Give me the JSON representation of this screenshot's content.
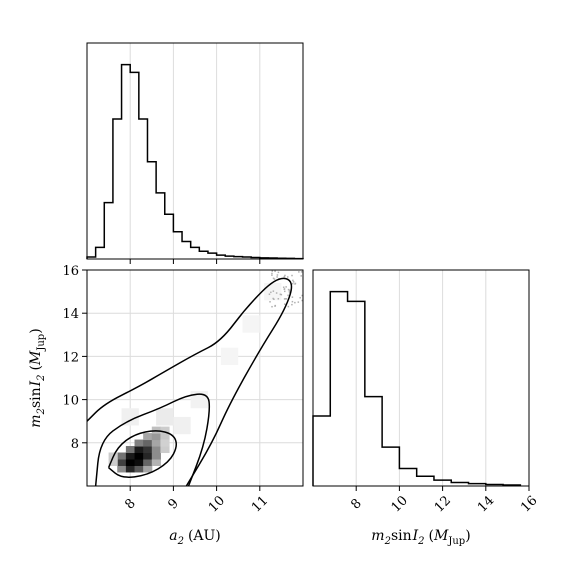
{
  "chart_data": [
    {
      "type": "histogram",
      "panel": "top",
      "x": [
        7.1,
        7.3,
        7.5,
        7.7,
        7.9,
        8.1,
        8.3,
        8.5,
        8.7,
        8.9,
        9.1,
        9.3,
        9.5,
        9.7,
        9.9,
        10.1,
        10.3,
        10.5,
        10.7,
        10.9,
        11.1,
        11.3,
        11.5,
        11.7,
        11.9
      ],
      "counts": [
        0.01,
        0.06,
        0.29,
        0.72,
        1.0,
        0.96,
        0.72,
        0.5,
        0.34,
        0.23,
        0.14,
        0.09,
        0.06,
        0.04,
        0.03,
        0.02,
        0.015,
        0.012,
        0.01,
        0.008,
        0.006,
        0.005,
        0.004,
        0.003,
        0.002
      ],
      "xlim": [
        7.0,
        12.0
      ],
      "grid": true
    },
    {
      "type": "heatmap",
      "panel": "bottom-left",
      "xlabel_main": "a",
      "xlabel_sub": "2",
      "xlabel_unit": "(AU)",
      "ylabel_parts": [
        "m",
        "2",
        "sin",
        "I",
        "2",
        "(",
        "M",
        "Jup",
        ")"
      ],
      "xlim": [
        7.0,
        12.0
      ],
      "ylim": [
        6.0,
        16.0
      ],
      "xticks": [
        "8",
        "9",
        "10",
        "11"
      ],
      "xtick_values": [
        8,
        9,
        10,
        11
      ],
      "yticks": [
        "8",
        "10",
        "12",
        "14",
        "16"
      ],
      "ytick_values": [
        8,
        10,
        12,
        14,
        16
      ],
      "cells": [
        {
          "x": 7.8,
          "y": 6.8,
          "d": 0.45
        },
        {
          "x": 8.0,
          "y": 6.8,
          "d": 0.85
        },
        {
          "x": 8.2,
          "y": 6.8,
          "d": 0.65
        },
        {
          "x": 8.4,
          "y": 6.8,
          "d": 0.35
        },
        {
          "x": 7.8,
          "y": 7.1,
          "d": 0.75
        },
        {
          "x": 8.0,
          "y": 7.1,
          "d": 1.0
        },
        {
          "x": 8.2,
          "y": 7.1,
          "d": 0.95
        },
        {
          "x": 8.4,
          "y": 7.1,
          "d": 0.6
        },
        {
          "x": 8.6,
          "y": 7.1,
          "d": 0.3
        },
        {
          "x": 7.8,
          "y": 7.4,
          "d": 0.55
        },
        {
          "x": 8.0,
          "y": 7.4,
          "d": 0.9
        },
        {
          "x": 8.2,
          "y": 7.4,
          "d": 1.0
        },
        {
          "x": 8.4,
          "y": 7.4,
          "d": 0.85
        },
        {
          "x": 8.6,
          "y": 7.4,
          "d": 0.45
        },
        {
          "x": 8.0,
          "y": 7.7,
          "d": 0.55
        },
        {
          "x": 8.2,
          "y": 7.7,
          "d": 0.9
        },
        {
          "x": 8.4,
          "y": 7.7,
          "d": 0.8
        },
        {
          "x": 8.6,
          "y": 7.7,
          "d": 0.45
        },
        {
          "x": 8.2,
          "y": 8.0,
          "d": 0.5
        },
        {
          "x": 8.4,
          "y": 8.0,
          "d": 0.6
        },
        {
          "x": 8.6,
          "y": 8.0,
          "d": 0.35
        },
        {
          "x": 8.4,
          "y": 8.3,
          "d": 0.35
        },
        {
          "x": 8.6,
          "y": 8.3,
          "d": 0.4
        },
        {
          "x": 8.8,
          "y": 8.3,
          "d": 0.22
        },
        {
          "x": 8.6,
          "y": 8.6,
          "d": 0.25
        },
        {
          "x": 8.8,
          "y": 8.6,
          "d": 0.2
        },
        {
          "x": 7.6,
          "y": 7.4,
          "d": 0.2
        },
        {
          "x": 7.6,
          "y": 7.1,
          "d": 0.2
        },
        {
          "x": 8.8,
          "y": 7.7,
          "d": 0.2
        },
        {
          "x": 8.8,
          "y": 8.0,
          "d": 0.18
        }
      ],
      "contours": [
        [
          [
            7.5,
            6.85
          ],
          [
            7.7,
            7.8
          ],
          [
            8.1,
            8.4
          ],
          [
            8.6,
            8.6
          ],
          [
            9.0,
            8.4
          ],
          [
            9.1,
            7.85
          ],
          [
            8.9,
            7.1
          ],
          [
            8.4,
            6.5
          ],
          [
            7.8,
            6.35
          ],
          [
            7.5,
            6.85
          ]
        ],
        [
          [
            7.2,
            6.0
          ],
          [
            7.3,
            8.1
          ],
          [
            7.9,
            9.0
          ],
          [
            8.7,
            9.6
          ],
          [
            9.3,
            10.2
          ],
          [
            9.8,
            10.3
          ],
          [
            9.85,
            9.5
          ],
          [
            9.7,
            7.8
          ],
          [
            9.35,
            6.0
          ]
        ],
        [
          [
            7.0,
            9.0
          ],
          [
            7.4,
            9.8
          ],
          [
            8.2,
            10.6
          ],
          [
            8.8,
            11.3
          ],
          [
            9.5,
            12.1
          ],
          [
            10.1,
            12.7
          ],
          [
            10.7,
            14.3
          ],
          [
            11.4,
            15.7
          ],
          [
            11.8,
            15.5
          ],
          [
            11.6,
            14.2
          ],
          [
            11.0,
            12.3
          ],
          [
            10.3,
            9.8
          ],
          [
            9.9,
            8.0
          ],
          [
            9.3,
            6.0
          ]
        ]
      ],
      "grid": true
    },
    {
      "type": "histogram",
      "panel": "bottom-right",
      "xlabel_parts": [
        "m",
        "2",
        "sin",
        "I",
        "2",
        "(",
        "M",
        "Jup",
        ")"
      ],
      "xlim": [
        6.0,
        16.0
      ],
      "xticks": [
        "8",
        "10",
        "12",
        "14",
        "16"
      ],
      "xtick_values": [
        8,
        10,
        12,
        14,
        16
      ],
      "x": [
        6.4,
        7.2,
        8.0,
        8.8,
        9.6,
        10.4,
        11.2,
        12.0,
        12.8,
        13.6,
        14.4,
        15.2
      ],
      "counts": [
        0.36,
        1.0,
        0.95,
        0.46,
        0.2,
        0.09,
        0.05,
        0.03,
        0.018,
        0.012,
        0.008,
        0.005
      ],
      "grid": true
    }
  ]
}
